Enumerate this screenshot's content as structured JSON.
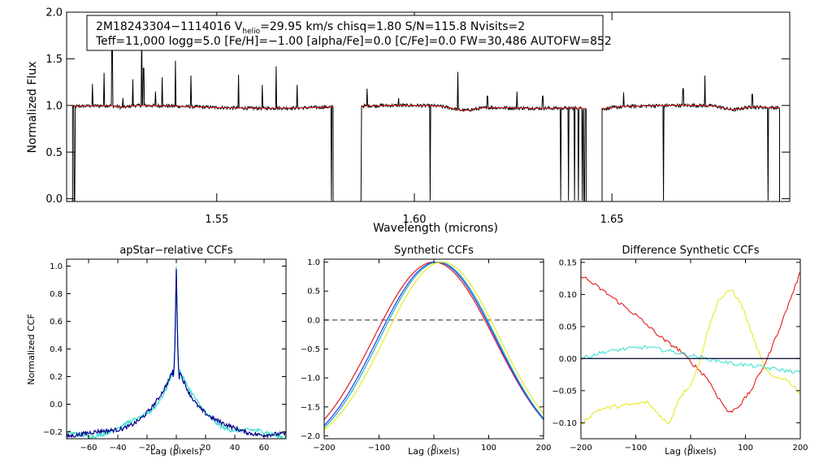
{
  "chart_data": [
    {
      "id": "spectrum",
      "type": "line",
      "title": "",
      "xlabel": "Wavelength (microns)",
      "ylabel": "Normalized Flux",
      "xlim": [
        1.512,
        1.695
      ],
      "ylim": [
        -0.03,
        2.0
      ],
      "xticks": [
        1.55,
        1.6,
        1.65
      ],
      "xtick_labels": [
        "1.55",
        "1.60",
        "1.65"
      ],
      "yticks": [
        0.0,
        0.5,
        1.0,
        1.5,
        2.0
      ],
      "ytick_labels": [
        "0.0",
        "0.5",
        "1.0",
        "1.5",
        "2.0"
      ],
      "annotation": {
        "line1_a": "2M18243304−1114016  V",
        "line1_sub": "helio",
        "line1_b": "=29.95 km/s  chisq=1.80  S/N=115.8  Nvisits=2",
        "line2": "Teff=11,000 logg=5.0 [Fe/H]=−1.00 [alpha/Fe]=0.0 [C/Fe]=0.0 FW=30,486 AUTOFW=852"
      },
      "chips": [
        [
          1.5135,
          1.5795
        ],
        [
          1.5865,
          1.6435
        ],
        [
          1.6475,
          1.6925
        ]
      ],
      "dips": [
        [
          1.6125,
          0.04,
          0.004
        ],
        [
          1.6805,
          0.035,
          0.003
        ],
        [
          1.6465,
          0.02,
          0.004
        ],
        [
          1.5262,
          0.02,
          0.002
        ]
      ],
      "emission_lines": [
        [
          1.5185,
          1.23
        ],
        [
          1.5215,
          1.35
        ],
        [
          1.5235,
          1.7
        ],
        [
          1.5262,
          1.08
        ],
        [
          1.5288,
          1.28
        ],
        [
          1.531,
          1.88
        ],
        [
          1.5315,
          1.4
        ],
        [
          1.5345,
          1.15
        ],
        [
          1.5362,
          1.3
        ],
        [
          1.5395,
          1.48
        ],
        [
          1.5435,
          1.32
        ],
        [
          1.5555,
          1.33
        ],
        [
          1.5615,
          1.22
        ],
        [
          1.565,
          1.42
        ],
        [
          1.5703,
          1.22
        ],
        [
          1.588,
          1.18
        ],
        [
          1.596,
          1.08
        ],
        [
          1.604,
          1.21
        ],
        [
          1.611,
          1.36
        ],
        [
          1.6185,
          1.1
        ],
        [
          1.626,
          1.15
        ],
        [
          1.6325,
          1.1
        ],
        [
          1.639,
          1.11
        ],
        [
          1.653,
          1.14
        ],
        [
          1.668,
          1.18
        ],
        [
          1.6735,
          1.32
        ],
        [
          1.6855,
          1.12
        ]
      ],
      "absorption_lines": [
        1.514,
        1.579,
        1.5865,
        1.604,
        1.637,
        1.639,
        1.6405,
        1.6415,
        1.6425,
        1.643,
        1.663,
        1.6895
      ],
      "series": [
        {
          "name": "observed",
          "color": "#000000"
        },
        {
          "name": "model",
          "color": "#e41b1b"
        }
      ]
    },
    {
      "id": "apstar",
      "type": "line",
      "title": "apStar−relative CCFs",
      "xlabel": "Lag (pixels)",
      "ylabel": "Normalized CCF",
      "xlim": [
        -75,
        75
      ],
      "ylim": [
        -0.25,
        1.05
      ],
      "xticks": [
        -60,
        -40,
        -20,
        0,
        20,
        40,
        60
      ],
      "xtick_labels": [
        "−60",
        "−40",
        "−20",
        "0",
        "20",
        "40",
        "60"
      ],
      "yticks": [
        -0.2,
        0.0,
        0.2,
        0.4,
        0.6,
        0.8,
        1.0
      ],
      "ytick_labels": [
        "−0.2",
        "0.0",
        "0.2",
        "0.4",
        "0.6",
        "0.8",
        "1.0"
      ],
      "profile": {
        "base": -0.23,
        "amp": 0.54,
        "scale": 17,
        "peak": 1.0
      },
      "series": [
        {
          "name": "visit 1",
          "color": "#40e0d0"
        },
        {
          "name": "visit 2",
          "color": "#00008b"
        }
      ]
    },
    {
      "id": "synthetic",
      "type": "line",
      "title": "Synthetic CCFs",
      "xlabel": "Lag (pixels)",
      "ylabel": "",
      "xlim": [
        -200,
        200
      ],
      "ylim": [
        -2.05,
        1.05
      ],
      "xticks": [
        -200,
        -100,
        0,
        100,
        200
      ],
      "xtick_labels": [
        "−200",
        "−100",
        "0",
        "100",
        "200"
      ],
      "yticks": [
        -2.0,
        -1.5,
        -1.0,
        -0.5,
        0.0,
        0.5,
        1.0
      ],
      "ytick_labels": [
        "−2.0",
        "−1.5",
        "−1.0",
        "−0.5",
        "0.0",
        "0.5",
        "1.0"
      ],
      "zero_line": {
        "value": 0.0,
        "color": "#555555"
      },
      "series": [
        {
          "name": "red",
          "color": "#e41b1b",
          "center": 0,
          "scale": 111,
          "end_value": -1.72
        },
        {
          "name": "blue",
          "color": "#1e3cff",
          "center": 5,
          "scale": 108,
          "end_value": -1.82
        },
        {
          "name": "cyan",
          "color": "#20b2aa",
          "center": 8,
          "scale": 107,
          "end_value": -1.86
        },
        {
          "name": "yellow",
          "color": "#e8e82a",
          "center": 15,
          "scale": 104,
          "end_value": -1.9
        }
      ]
    },
    {
      "id": "difference",
      "type": "line",
      "title": "Difference Synthetic CCFs",
      "xlabel": "Lag (pixels)",
      "ylabel": "",
      "xlim": [
        -200,
        200
      ],
      "ylim": [
        -0.125,
        0.155
      ],
      "xticks": [
        -200,
        -100,
        0,
        100,
        200
      ],
      "xtick_labels": [
        "−200",
        "−100",
        "0",
        "100",
        "200"
      ],
      "yticks": [
        -0.1,
        -0.05,
        0.0,
        0.05,
        0.1,
        0.15
      ],
      "ytick_labels": [
        "−0.10",
        "−0.05",
        "0.00",
        "0.05",
        "0.10",
        "0.15"
      ],
      "series": [
        {
          "name": "red",
          "color": "#e41b1b",
          "points": [
            [
              -200,
              0.13
            ],
            [
              -150,
              0.1
            ],
            [
              -100,
              0.068
            ],
            [
              -50,
              0.03
            ],
            [
              -20,
              0.013
            ],
            [
              0,
              -0.005
            ],
            [
              30,
              -0.03
            ],
            [
              50,
              -0.06
            ],
            [
              70,
              -0.085
            ],
            [
              90,
              -0.072
            ],
            [
              110,
              -0.05
            ],
            [
              140,
              0.0
            ],
            [
              170,
              0.065
            ],
            [
              200,
              0.135
            ]
          ]
        },
        {
          "name": "yellow",
          "color": "#e8e82a",
          "points": [
            [
              -200,
              -0.102
            ],
            [
              -170,
              -0.08
            ],
            [
              -140,
              -0.075
            ],
            [
              -110,
              -0.072
            ],
            [
              -80,
              -0.068
            ],
            [
              -60,
              -0.085
            ],
            [
              -40,
              -0.103
            ],
            [
              -20,
              -0.06
            ],
            [
              0,
              -0.04
            ],
            [
              15,
              -0.01
            ],
            [
              30,
              0.04
            ],
            [
              50,
              0.09
            ],
            [
              75,
              0.108
            ],
            [
              95,
              0.08
            ],
            [
              115,
              0.03
            ],
            [
              135,
              -0.015
            ],
            [
              150,
              -0.03
            ],
            [
              170,
              -0.03
            ],
            [
              185,
              -0.04
            ],
            [
              200,
              -0.055
            ]
          ]
        },
        {
          "name": "cyan",
          "color": "#40e0d0",
          "points": [
            [
              -200,
              0.0
            ],
            [
              -160,
              0.01
            ],
            [
              -120,
              0.015
            ],
            [
              -80,
              0.018
            ],
            [
              -40,
              0.012
            ],
            [
              0,
              0.005
            ],
            [
              40,
              -0.002
            ],
            [
              80,
              -0.008
            ],
            [
              120,
              -0.012
            ],
            [
              160,
              -0.017
            ],
            [
              200,
              -0.022
            ]
          ]
        },
        {
          "name": "blue",
          "color": "#1e3cff",
          "points": [
            [
              -200,
              0.0
            ],
            [
              200,
              0.0
            ]
          ]
        },
        {
          "name": "black",
          "color": "#000000",
          "points": [
            [
              -200,
              0.0
            ],
            [
              200,
              0.0
            ]
          ]
        }
      ]
    }
  ]
}
